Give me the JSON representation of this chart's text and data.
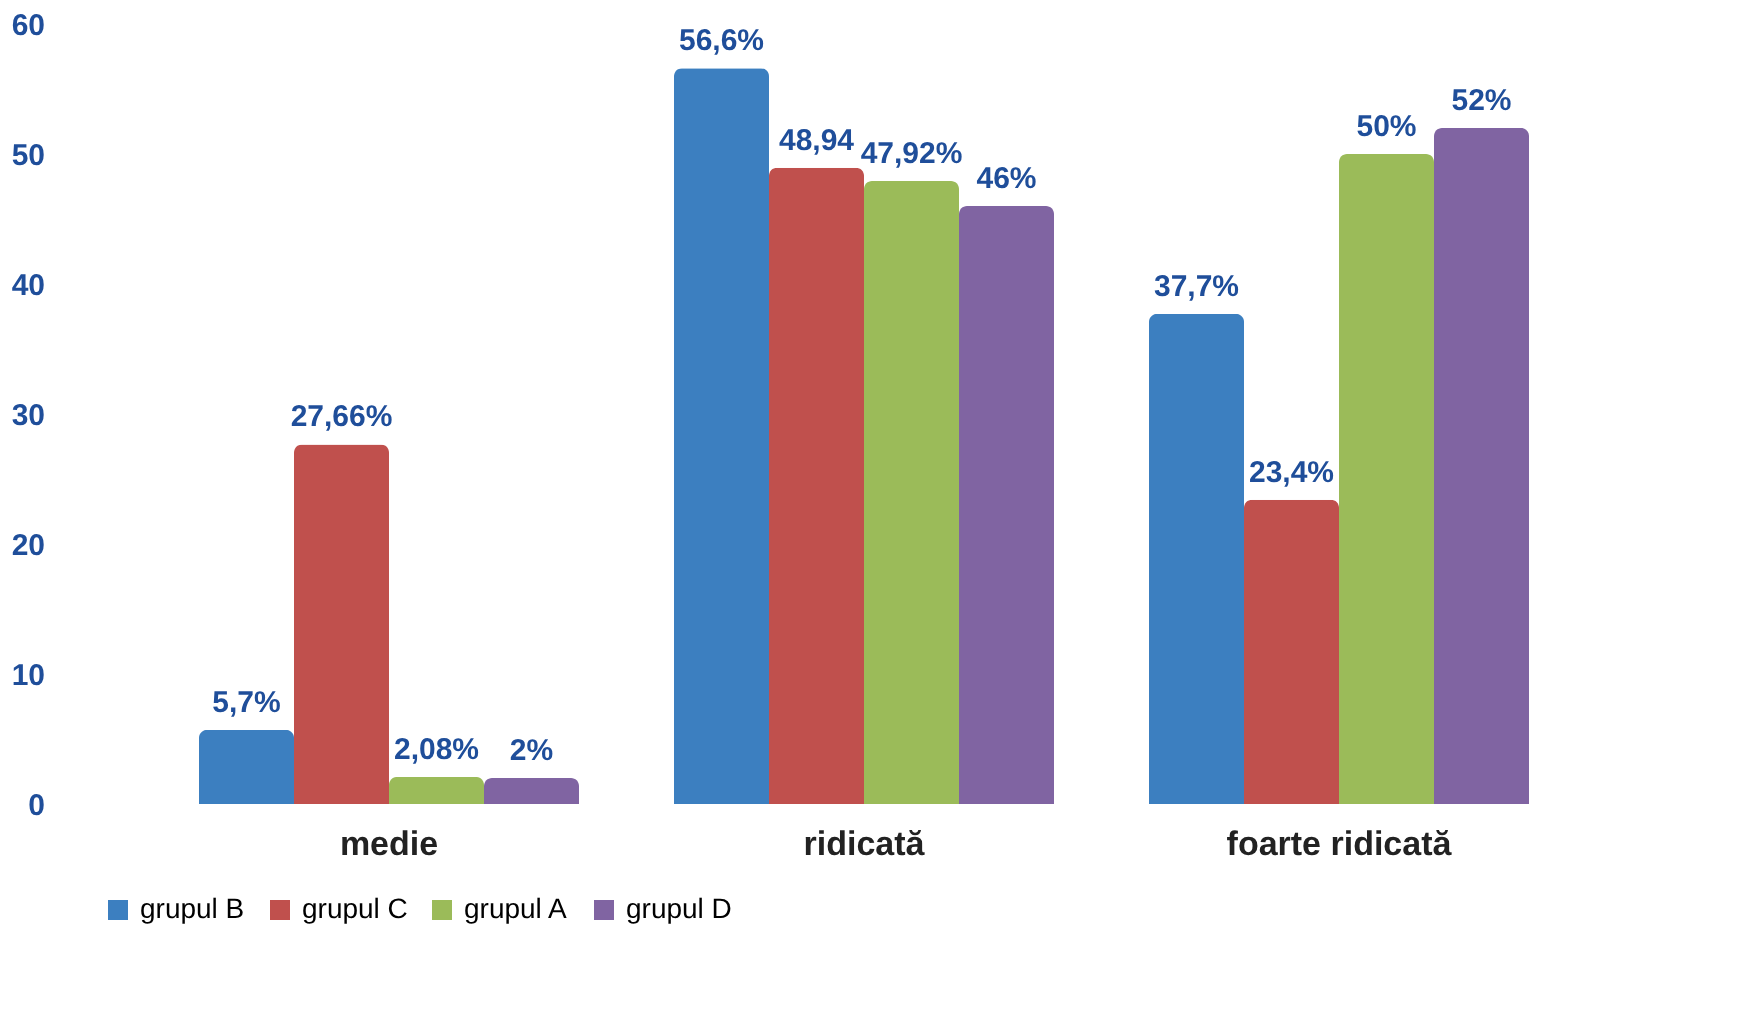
{
  "chart_data": {
    "type": "bar",
    "categories": [
      "medie",
      "ridicată",
      "foarte ridicată"
    ],
    "series": [
      {
        "name": "grupul B",
        "color": "#3c7fc0",
        "values": [
          5.7,
          56.6,
          37.7
        ],
        "value_labels": [
          "5,7%",
          "56,6%",
          "37,7%"
        ]
      },
      {
        "name": "grupul C",
        "color": "#c0504d",
        "values": [
          27.66,
          48.94,
          23.4
        ],
        "value_labels": [
          "27,66%",
          "48,94",
          "23,4%"
        ]
      },
      {
        "name": "grupul A",
        "color": "#9bbb59",
        "values": [
          2.08,
          47.92,
          50
        ],
        "value_labels": [
          "2,08%",
          "47,92%",
          "50%"
        ]
      },
      {
        "name": "grupul D",
        "color": "#8064a2",
        "values": [
          2,
          46,
          52
        ],
        "value_labels": [
          "2%",
          "46%",
          "52%"
        ]
      }
    ],
    "ylim": [
      0,
      60
    ],
    "yticks": [
      0,
      10,
      20,
      30,
      40,
      50,
      60
    ],
    "grid": false,
    "legend": "bottom"
  }
}
